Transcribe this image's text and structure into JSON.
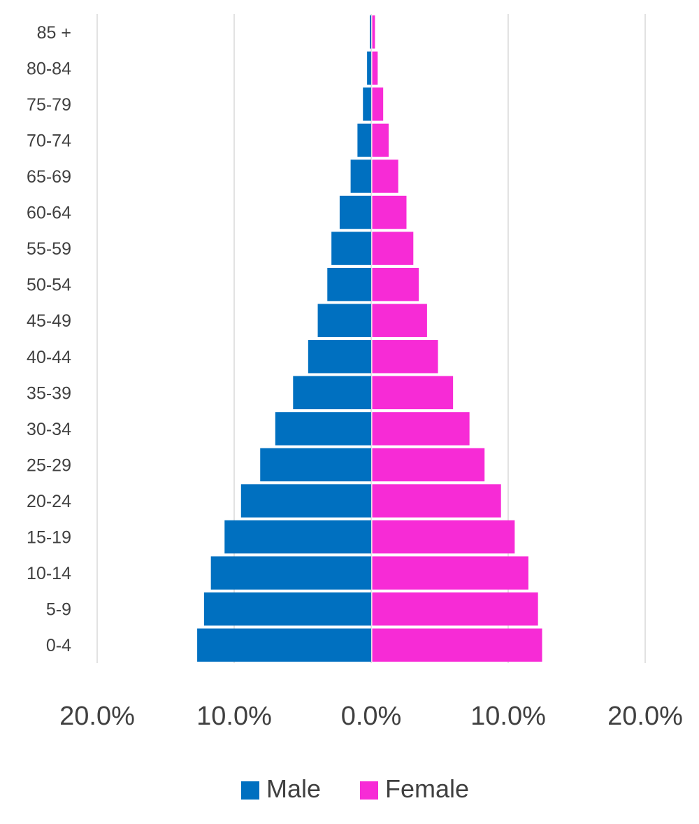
{
  "chart_data": {
    "type": "bar",
    "orientation": "horizontal",
    "layout": "population-pyramid",
    "title": "",
    "xlabel": "",
    "ylabel": "",
    "categories": [
      "85 +",
      "80-84",
      "75-79",
      "70-74",
      "65-69",
      "60-64",
      "55-59",
      "50-54",
      "45-49",
      "40-44",
      "35-39",
      "30-34",
      "25-29",
      "20-24",
      "15-19",
      "10-14",
      "5-9",
      "0-4"
    ],
    "series": [
      {
        "name": "Male",
        "color": "#0070C0",
        "side": "left",
        "values": [
          0.1,
          0.3,
          0.6,
          1.0,
          1.5,
          2.3,
          2.9,
          3.2,
          3.9,
          4.6,
          5.7,
          7.0,
          8.1,
          9.5,
          10.7,
          11.7,
          12.2,
          12.7
        ]
      },
      {
        "name": "Female",
        "color": "#F72BD6",
        "side": "right",
        "values": [
          0.2,
          0.4,
          0.8,
          1.2,
          1.9,
          2.5,
          3.0,
          3.4,
          4.0,
          4.8,
          5.9,
          7.1,
          8.2,
          9.4,
          10.4,
          11.4,
          12.1,
          12.4
        ]
      }
    ],
    "xlim": [
      -20,
      20
    ],
    "x_ticks": [
      -20,
      -10,
      0,
      10,
      20
    ],
    "x_tick_labels": [
      "20.0%",
      "10.0%",
      "0.0%",
      "10.0%",
      "20.0%"
    ],
    "value_unit": "percent",
    "grid": "vertical",
    "legend": {
      "position": "bottom",
      "entries": [
        "Male",
        "Female"
      ]
    }
  }
}
